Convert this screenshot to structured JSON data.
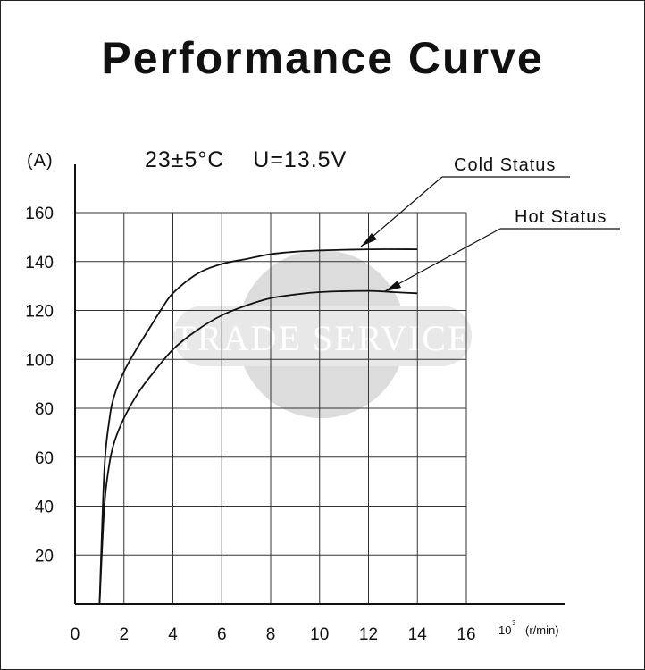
{
  "chart_data": {
    "type": "line",
    "title": "Performance Curve",
    "conditions": "23±5°C    U=13.5V",
    "y_unit": "(A)",
    "x_unit_power": "10",
    "x_unit_exp": "3",
    "x_unit_suffix": "(r/min)",
    "xlim": [
      0,
      16
    ],
    "ylim": [
      0,
      160
    ],
    "x_ticks": [
      0,
      2,
      4,
      6,
      8,
      10,
      12,
      14,
      16
    ],
    "y_ticks": [
      20,
      40,
      60,
      80,
      100,
      120,
      140,
      160
    ],
    "grid": true,
    "series": [
      {
        "name": "Cold Status",
        "x": [
          1.0,
          1.2,
          1.4,
          1.6,
          2.0,
          2.5,
          3.0,
          3.5,
          4.0,
          5.0,
          6.0,
          7.0,
          8.0,
          9.0,
          10.0,
          12.0,
          14.0
        ],
        "y": [
          0,
          55,
          75,
          85,
          95,
          104,
          112,
          120,
          127,
          135,
          139,
          141,
          143,
          144,
          144.5,
          145,
          145
        ]
      },
      {
        "name": "Hot Status",
        "x": [
          1.0,
          1.2,
          1.4,
          1.6,
          2.0,
          2.5,
          3.0,
          4.0,
          5.0,
          6.0,
          7.0,
          8.0,
          9.0,
          10.0,
          12.0,
          13.0,
          14.0
        ],
        "y": [
          0,
          40,
          57,
          66,
          76,
          85,
          92,
          104,
          112,
          118,
          122,
          125,
          126.5,
          127.5,
          128,
          127.5,
          127
        ]
      }
    ],
    "watermark": "TRADE SERVICE"
  }
}
